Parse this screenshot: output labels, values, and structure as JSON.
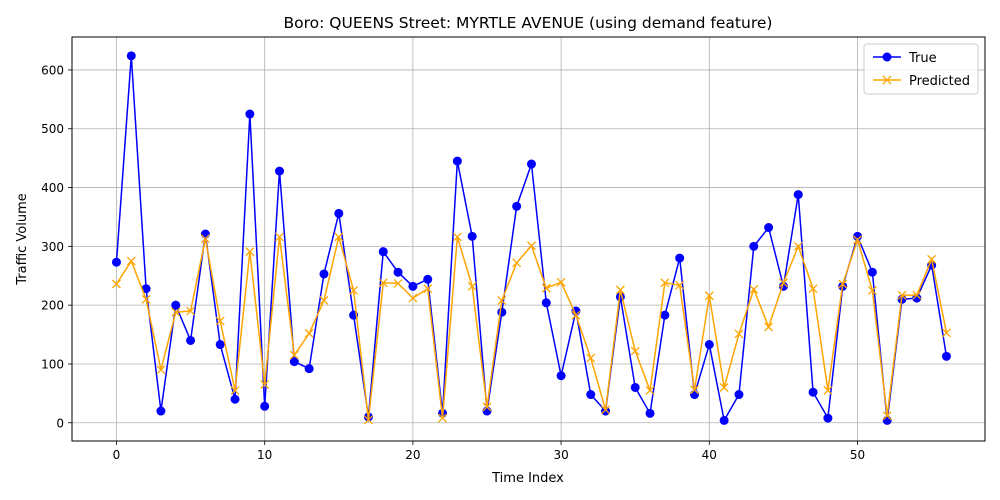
{
  "chart_data": {
    "type": "line",
    "title": "Boro: QUEENS Street: MYRTLE AVENUE (using demand feature)",
    "xlabel": "Time Index",
    "ylabel": "Traffic Volume",
    "xlim": [
      -3,
      58.6
    ],
    "ylim": [
      -31,
      656
    ],
    "x_ticks": [
      0,
      10,
      20,
      30,
      40,
      50
    ],
    "y_ticks": [
      0,
      100,
      200,
      300,
      400,
      500,
      600
    ],
    "grid": true,
    "legend_position": "top-right",
    "x": [
      0,
      1,
      2,
      3,
      4,
      5,
      6,
      7,
      8,
      9,
      10,
      11,
      12,
      13,
      14,
      15,
      16,
      17,
      18,
      19,
      20,
      21,
      22,
      23,
      24,
      25,
      26,
      27,
      28,
      29,
      30,
      31,
      32,
      33,
      34,
      35,
      36,
      37,
      38,
      39,
      40,
      41,
      42,
      43,
      44,
      45,
      46,
      47,
      48,
      49,
      50,
      51,
      52,
      53,
      54,
      55,
      56
    ],
    "series": [
      {
        "name": "True",
        "color": "#0000ff",
        "marker": "circle",
        "values": [
          273,
          624,
          228,
          20,
          200,
          140,
          321,
          133,
          40,
          525,
          28,
          428,
          104,
          92,
          253,
          356,
          183,
          10,
          291,
          256,
          232,
          244,
          16,
          445,
          317,
          20,
          188,
          368,
          440,
          204,
          80,
          190,
          48,
          20,
          214,
          60,
          16,
          183,
          280,
          48,
          133,
          4,
          48,
          300,
          332,
          232,
          388,
          52,
          8,
          232,
          317,
          256,
          4,
          210,
          212,
          268,
          113
        ]
      },
      {
        "name": "Predicted",
        "color": "#ffa500",
        "marker": "x",
        "values": [
          236,
          275,
          210,
          90,
          188,
          190,
          313,
          173,
          55,
          291,
          65,
          316,
          115,
          152,
          208,
          316,
          225,
          5,
          238,
          237,
          212,
          228,
          8,
          316,
          232,
          27,
          208,
          272,
          301,
          229,
          239,
          183,
          110,
          22,
          226,
          122,
          55,
          238,
          234,
          56,
          216,
          60,
          151,
          227,
          163,
          238,
          300,
          228,
          55,
          236,
          311,
          225,
          12,
          217,
          217,
          278,
          153
        ]
      }
    ]
  }
}
